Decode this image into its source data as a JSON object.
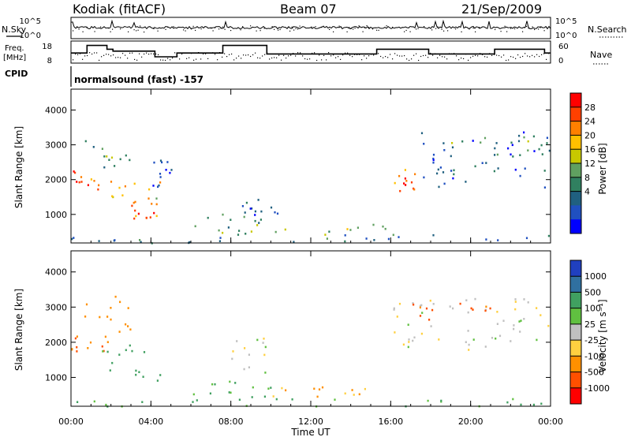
{
  "header": {
    "station": "Kodiak (fitACF)",
    "beam": "Beam 07",
    "date": "21/Sep/2009"
  },
  "top_panels": {
    "nsky_label": "N.Sky",
    "nsky_ticks": [
      "10^5",
      "10^0"
    ],
    "nsearch_label": "N.Search",
    "nsearch_ticks": [
      "10^5",
      "10^0"
    ],
    "freq_label_line1": "Freq.",
    "freq_label_line2": "[MHz]",
    "freq_ticks": [
      "18",
      "8"
    ],
    "nave_label": "Nave",
    "nave_ticks": [
      "60",
      "0"
    ],
    "cpid_label": "CPID",
    "cpid_text": "normalsound (fast) -157"
  },
  "power_colorbar": {
    "label": "Power [dB]",
    "ticks": [
      "28",
      "24",
      "20",
      "16",
      "12",
      "8",
      "4"
    ],
    "colors": [
      "#ff0000",
      "#ff4000",
      "#ff8000",
      "#ffc000",
      "#c8c800",
      "#60a060",
      "#308060",
      "#206080",
      "#2050c0",
      "#0000ff"
    ]
  },
  "velocity_colorbar": {
    "label": "Velocity [m s⁻¹]",
    "ticks": [
      "1000",
      "500",
      "100",
      "25",
      "-25",
      "-100",
      "-500",
      "-1000"
    ],
    "colors": [
      "#2040c0",
      "#3070a0",
      "#40a060",
      "#60c040",
      "#c0c0c0",
      "#ffd040",
      "#ff9000",
      "#ff5000",
      "#ff0000"
    ]
  },
  "chart_data": {
    "type": "heatmap",
    "xlabel": "Time UT",
    "ylabel": "Slant Range [km]",
    "x_ticks": [
      "00:00",
      "04:00",
      "08:00",
      "12:00",
      "16:00",
      "20:00",
      "00:00"
    ],
    "y_ticks": [
      "1000",
      "2000",
      "3000",
      "4000"
    ],
    "xlim_hours": [
      0,
      24
    ],
    "ylim_km": [
      180,
      4600
    ],
    "frequency_mhz_steps": [
      {
        "from": 0.0,
        "to": 0.8,
        "mhz": 12.5
      },
      {
        "from": 0.8,
        "to": 1.8,
        "mhz": 16.5
      },
      {
        "from": 1.8,
        "to": 2.1,
        "mhz": 14.5
      },
      {
        "from": 2.1,
        "to": 4.2,
        "mhz": 13.5
      },
      {
        "from": 4.2,
        "to": 5.3,
        "mhz": 10.5
      },
      {
        "from": 5.3,
        "to": 7.6,
        "mhz": 12.5
      },
      {
        "from": 7.6,
        "to": 9.8,
        "mhz": 16.5
      },
      {
        "from": 9.8,
        "to": 12.0,
        "mhz": 12.0
      },
      {
        "from": 12.0,
        "to": 15.3,
        "mhz": 12.0
      },
      {
        "from": 15.3,
        "to": 17.9,
        "mhz": 14.5
      },
      {
        "from": 17.9,
        "to": 21.2,
        "mhz": 12.0
      },
      {
        "from": 21.2,
        "to": 23.7,
        "mhz": 14.5
      },
      {
        "from": 23.7,
        "to": 24.0,
        "mhz": 12.5
      }
    ],
    "power_regions_db": [
      {
        "t0": 0.0,
        "t1": 2.0,
        "r0": 1700,
        "r1": 2300,
        "db": 26
      },
      {
        "t0": 0.5,
        "t1": 3.0,
        "r0": 2300,
        "r1": 3200,
        "db": 14
      },
      {
        "t0": 2.0,
        "t1": 4.5,
        "r0": 1300,
        "r1": 2000,
        "db": 20
      },
      {
        "t0": 3.0,
        "t1": 4.5,
        "r0": 900,
        "r1": 1400,
        "db": 27
      },
      {
        "t0": 4.0,
        "t1": 5.0,
        "r0": 1800,
        "r1": 2600,
        "db": 5
      },
      {
        "t0": 6.0,
        "t1": 9.5,
        "r0": 450,
        "r1": 1100,
        "db": 14
      },
      {
        "t0": 8.5,
        "t1": 10.5,
        "r0": 1000,
        "r1": 1500,
        "db": 8
      },
      {
        "t0": 8.0,
        "t1": 16.0,
        "r0": 400,
        "r1": 750,
        "db": 16
      },
      {
        "t0": 0.0,
        "t1": 24.0,
        "r0": 200,
        "r1": 450,
        "db": 10
      },
      {
        "t0": 16.0,
        "t1": 17.5,
        "r0": 1700,
        "r1": 2400,
        "db": 26
      },
      {
        "t0": 17.5,
        "t1": 24.0,
        "r0": 1800,
        "r1": 3400,
        "db": 8
      },
      {
        "t0": 18.5,
        "t1": 24.0,
        "r0": 2700,
        "r1": 3300,
        "db": 14
      }
    ],
    "velocity_regions_ms": [
      {
        "t0": 0.0,
        "t1": 2.0,
        "r0": 1700,
        "r1": 2300,
        "v": -500
      },
      {
        "t0": 0.5,
        "t1": 3.0,
        "r0": 2300,
        "r1": 3400,
        "v": -250
      },
      {
        "t0": 1.5,
        "t1": 4.5,
        "r0": 900,
        "r1": 2000,
        "v": 150
      },
      {
        "t0": 6.0,
        "t1": 10.0,
        "r0": 400,
        "r1": 1100,
        "v": 120
      },
      {
        "t0": 8.0,
        "t1": 10.5,
        "r0": 1100,
        "r1": 2200,
        "v": 0
      },
      {
        "t0": 10.0,
        "t1": 15.0,
        "r0": 400,
        "r1": 750,
        "v": -120
      },
      {
        "t0": 0.0,
        "t1": 24.0,
        "r0": 200,
        "r1": 420,
        "v": 100
      },
      {
        "t0": 16.0,
        "t1": 24.0,
        "r0": 1800,
        "r1": 3300,
        "v": 0
      },
      {
        "t0": 17.0,
        "t1": 21.0,
        "r0": 2600,
        "r1": 3200,
        "v": -600
      }
    ]
  }
}
